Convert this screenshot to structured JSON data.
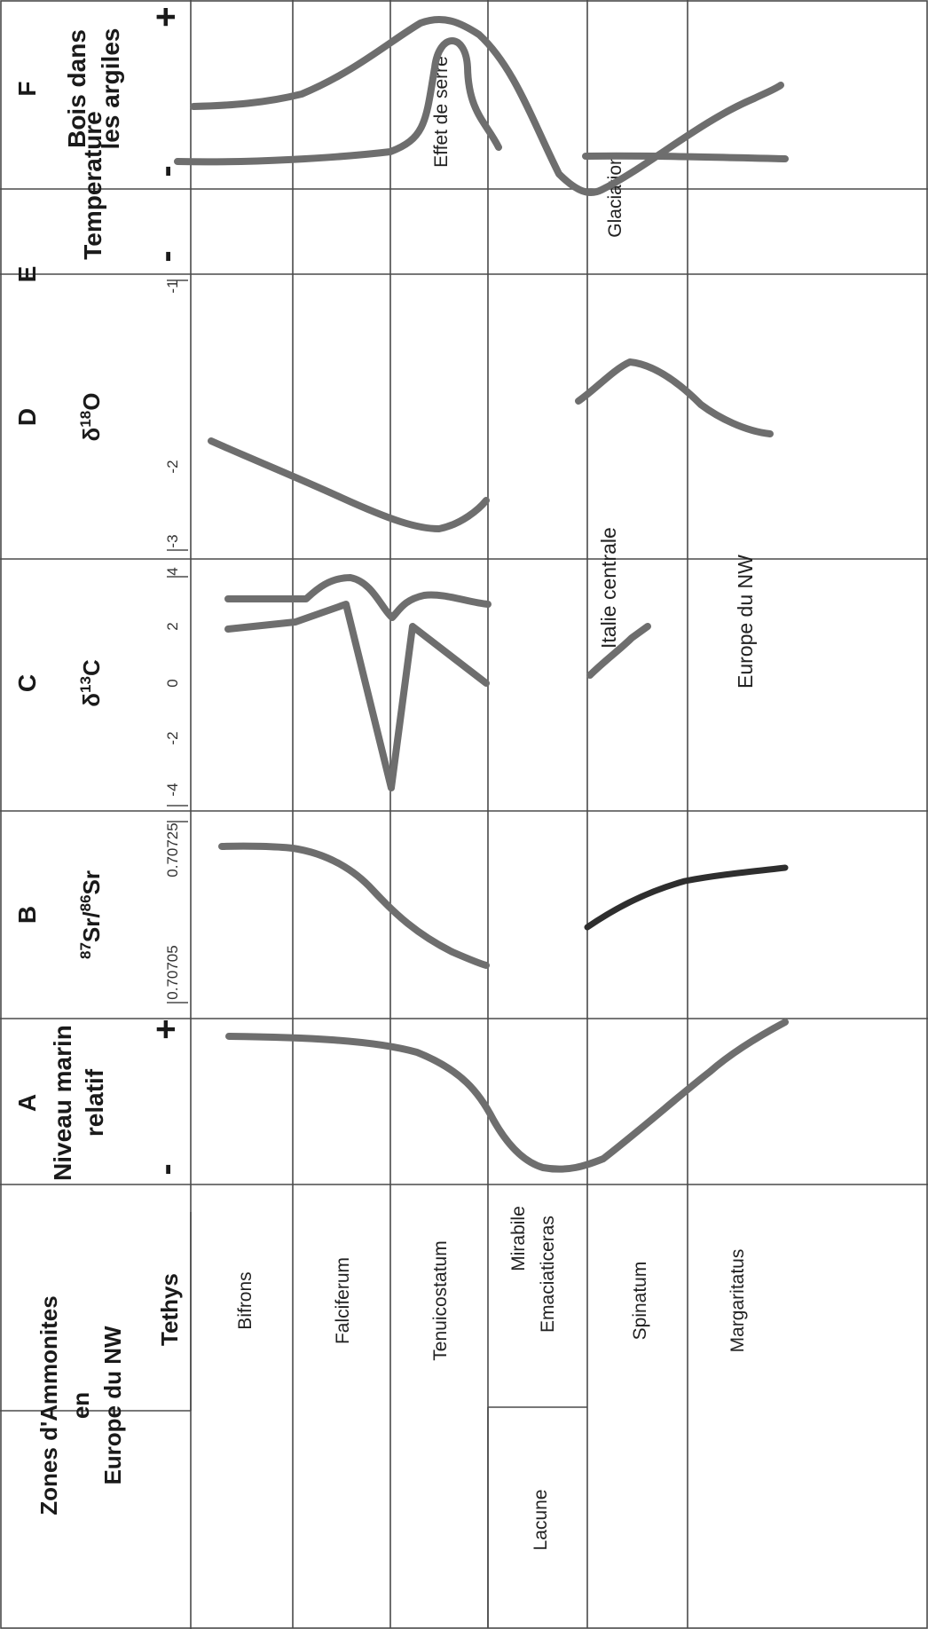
{
  "chart_data": {
    "type": "line",
    "orientation": "vertical-stratigraphic",
    "ammonite_header": {
      "title_line1": "Zones d'Ammonites",
      "title_line2": "en",
      "title_line3": "Europe du NW",
      "tethys": "Tethys"
    },
    "zones": [
      "Bifrons",
      "Falciferum",
      "Tenuicostatum",
      "Mirabile",
      "Emaciaticeras",
      "Lacune",
      "Spinatum",
      "Margaritatus"
    ],
    "columns": {
      "A": {
        "letter": "A",
        "title_line1": "Niveau marin",
        "title_line2": "relatif",
        "min_label": "-",
        "max_label": "+"
      },
      "B": {
        "letter": "B",
        "title_sup1": "87",
        "title_main1": "Sr/",
        "title_sup2": "86",
        "title_main2": "Sr",
        "ticks": [
          "0.70705",
          "0.70725"
        ]
      },
      "C": {
        "letter": "C",
        "title_prefix": "δ",
        "title_sup": "13",
        "title_main": "C",
        "ticks": [
          "-4",
          "-2",
          "0",
          "2",
          "4"
        ],
        "series": [
          {
            "name": "Italie centrale"
          },
          {
            "name": "Europe du NW"
          }
        ]
      },
      "D": {
        "letter": "D",
        "title_prefix": "δ",
        "title_sup": "18",
        "title_main": "O",
        "ticks": [
          "-3",
          "-2",
          "-1"
        ]
      },
      "E": {
        "letter": "E",
        "title": "Temperature",
        "min_label": "-",
        "max_label": "+",
        "annotations": [
          "Effet de serre",
          "Glaciation"
        ]
      },
      "F": {
        "letter": "F",
        "title_line1": "Bois dans",
        "title_line2": "les argiles",
        "min_label": "-",
        "max_label": "+"
      }
    }
  },
  "colors": {
    "curve": "#6e6e6e",
    "curve_dark": "#2e2e2e",
    "grid": "#4a4a4a"
  }
}
